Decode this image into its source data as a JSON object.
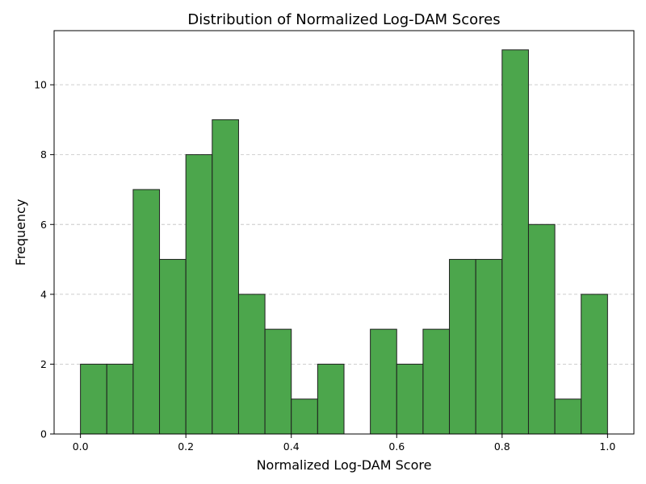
{
  "chart_data": {
    "type": "bar",
    "title": "Distribution of Normalized Log-DAM Scores",
    "xlabel": "Normalized Log-DAM Score",
    "ylabel": "Frequency",
    "bin_edges": [
      0.0,
      0.05,
      0.1,
      0.15,
      0.2,
      0.25,
      0.3,
      0.35,
      0.4,
      0.45,
      0.5,
      0.55,
      0.6,
      0.65,
      0.7,
      0.75,
      0.8,
      0.85,
      0.9,
      0.95,
      1.0
    ],
    "values": [
      2,
      2,
      7,
      5,
      8,
      9,
      4,
      3,
      1,
      2,
      0,
      3,
      2,
      3,
      5,
      5,
      11,
      6,
      1,
      4
    ],
    "xlim": [
      -0.05,
      1.05
    ],
    "ylim": [
      0,
      11.55
    ],
    "x_ticks": [
      "0.0",
      "0.2",
      "0.4",
      "0.6",
      "0.8",
      "1.0"
    ],
    "y_ticks": [
      "0",
      "2",
      "4",
      "6",
      "8",
      "10"
    ],
    "grid": "y-dashed",
    "bar_color": "#4ca64c",
    "edge_color": "#1f1f1f"
  }
}
